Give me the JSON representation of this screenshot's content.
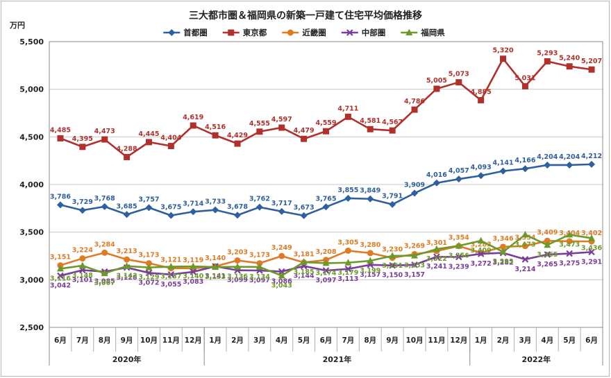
{
  "chart_data": {
    "type": "line",
    "title": "三大都市圏＆福岡県の新築一戸建て住宅平均価格推移",
    "ylabel": "万円",
    "ylim": [
      2500,
      5500
    ],
    "yticks": [
      2500,
      3000,
      3500,
      4000,
      4500,
      5000,
      5500
    ],
    "grid": true,
    "legend_position": "top",
    "categories": [
      "6月",
      "7月",
      "8月",
      "9月",
      "10月",
      "11月",
      "12月",
      "1月",
      "2月",
      "3月",
      "4月",
      "5月",
      "6月",
      "7月",
      "8月",
      "9月",
      "10月",
      "11月",
      "12月",
      "1月",
      "2月",
      "3月",
      "4月",
      "5月",
      "6月"
    ],
    "years": [
      {
        "label": "2020年",
        "start": 0,
        "end": 6
      },
      {
        "label": "2021年",
        "start": 7,
        "end": 18
      },
      {
        "label": "2022年",
        "start": 19,
        "end": 24
      }
    ],
    "series": [
      {
        "name": "首都圏",
        "color": "#2e5f9e",
        "marker": "diamond",
        "label_pos": "above",
        "values": [
          3786,
          3729,
          3768,
          3685,
          3757,
          3675,
          3714,
          3733,
          3678,
          3762,
          3717,
          3673,
          3765,
          3855,
          3849,
          3791,
          3909,
          4016,
          4057,
          4093,
          4141,
          4166,
          4204,
          4204,
          4212
        ]
      },
      {
        "name": "東京都",
        "color": "#b0312b",
        "marker": "square",
        "label_pos": "above",
        "values": [
          4485,
          4395,
          4473,
          4288,
          4445,
          4404,
          4619,
          4516,
          4429,
          4555,
          4597,
          4479,
          4559,
          4711,
          4581,
          4567,
          4786,
          5005,
          5073,
          4885,
          5320,
          5031,
          5293,
          5240,
          5207
        ]
      },
      {
        "name": "近畿圏",
        "color": "#e07b25",
        "marker": "circle",
        "label_pos": "above",
        "values": [
          3151,
          3224,
          3284,
          3213,
          3173,
          3121,
          3119,
          3140,
          3203,
          3173,
          3249,
          3181,
          3208,
          3305,
          3280,
          3230,
          3269,
          3301,
          3354,
          3283,
          3346,
          3354,
          3409,
          3404,
          3402
        ]
      },
      {
        "name": "中部圏",
        "color": "#7a3d9a",
        "marker": "x",
        "label_pos": "below",
        "values": [
          3042,
          3101,
          3085,
          3128,
          3072,
          3055,
          3083,
          3141,
          3099,
          3097,
          3086,
          3144,
          3097,
          3113,
          3157,
          3150,
          3157,
          3241,
          3239,
          3272,
          3282,
          3214,
          3265,
          3275,
          3291
        ]
      },
      {
        "name": "福岡県",
        "color": "#6b9a2a",
        "marker": "triangle",
        "label_pos": "below",
        "values": [
          3116,
          3148,
          3067,
          3143,
          3129,
          3137,
          3140,
          3133,
          3136,
          3134,
          3043,
          3185,
          3174,
          3179,
          3199,
          3251,
          3253,
          3322,
          3356,
          3409,
          3293,
          3473,
          3365,
          3473,
          3436
        ]
      }
    ]
  }
}
